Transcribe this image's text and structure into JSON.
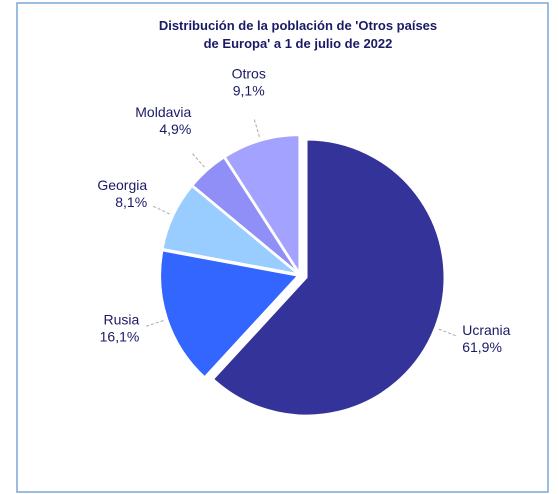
{
  "chart_data": {
    "type": "pie",
    "title": "Distribución de la población de 'Otros países de Europa' a 1 de julio de 2022",
    "categories": [
      "Ucrania",
      "Rusia",
      "Georgia",
      "Moldavia",
      "Otros"
    ],
    "values": [
      61.9,
      16.1,
      8.1,
      4.9,
      9.1
    ],
    "value_labels": [
      "61,9%",
      "16,1%",
      "8,1%",
      "4,9%",
      "9,1%"
    ],
    "colors": [
      "#333399",
      "#3366ff",
      "#99ccff",
      "#8f8ff7",
      "#a3a3ff"
    ]
  }
}
